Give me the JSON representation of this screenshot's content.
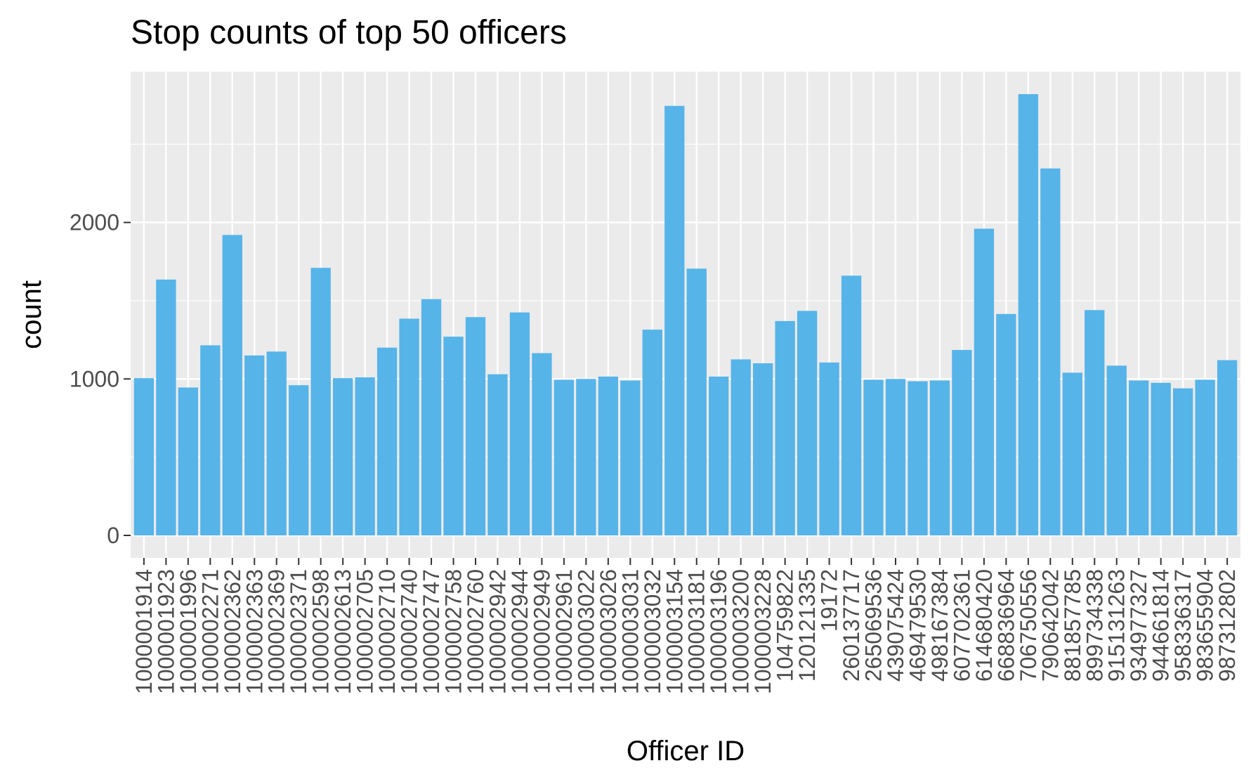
{
  "chart_data": {
    "type": "bar",
    "title": "Stop counts of top 50 officers",
    "xlabel": "Officer ID",
    "ylabel": "count",
    "ylim": [
      0,
      3000
    ],
    "yticks": [
      0,
      1000,
      2000
    ],
    "grid": true,
    "legend": "none",
    "bar_color": "#56b4e9",
    "panel_color": "#ebebeb",
    "categories": [
      "1000001914",
      "1000001923",
      "1000001996",
      "1000002271",
      "1000002362",
      "1000002363",
      "1000002369",
      "1000002371",
      "1000002598",
      "1000002613",
      "1000002705",
      "1000002710",
      "1000002740",
      "1000002747",
      "1000002758",
      "1000002760",
      "1000002942",
      "1000002944",
      "1000002949",
      "1000002961",
      "1000003022",
      "1000003026",
      "1000003031",
      "1000003032",
      "1000003154",
      "1000003181",
      "1000003196",
      "1000003200",
      "1000003228",
      "104759822",
      "120121335",
      "19172",
      "260137717",
      "265069536",
      "439075424",
      "469479530",
      "498167384",
      "607702361",
      "614680420",
      "668836964",
      "706750556",
      "790642042",
      "881857785",
      "899734338",
      "915131263",
      "934977327",
      "944661814",
      "958336317",
      "983655904",
      "987312802"
    ],
    "values": [
      1005,
      1635,
      945,
      1215,
      1920,
      1150,
      1175,
      960,
      1710,
      1005,
      1010,
      1200,
      1385,
      1510,
      1270,
      1395,
      1030,
      1425,
      1165,
      995,
      1000,
      1015,
      990,
      1315,
      2745,
      1705,
      1015,
      1125,
      1100,
      1370,
      1435,
      1105,
      1660,
      995,
      1000,
      985,
      990,
      1185,
      1960,
      1415,
      2820,
      2345,
      1040,
      1440,
      1085,
      990,
      975,
      940,
      995,
      1120
    ]
  }
}
